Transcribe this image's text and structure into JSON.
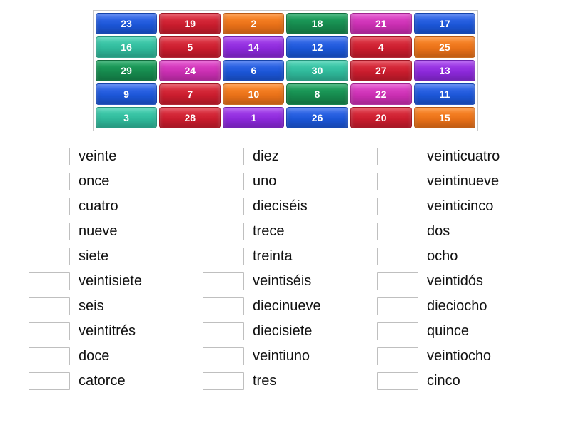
{
  "colors": {
    "blue": {
      "base": "#1b55d6",
      "light": "#3a6ff0"
    },
    "red": {
      "base": "#c91c2d",
      "light": "#e23646"
    },
    "orange": {
      "base": "#e87018",
      "light": "#ff8a2a"
    },
    "green": {
      "base": "#16894d",
      "light": "#1fa862"
    },
    "purple": {
      "base": "#8b28d9",
      "light": "#a944f0"
    },
    "magenta": {
      "base": "#c92eb1",
      "light": "#e348cc"
    },
    "teal": {
      "base": "#2fb89a",
      "light": "#44d2b2"
    }
  },
  "tiles": [
    {
      "n": "23",
      "c": "blue"
    },
    {
      "n": "19",
      "c": "red"
    },
    {
      "n": "2",
      "c": "orange"
    },
    {
      "n": "18",
      "c": "green"
    },
    {
      "n": "21",
      "c": "magenta"
    },
    {
      "n": "17",
      "c": "blue"
    },
    {
      "n": "16",
      "c": "teal"
    },
    {
      "n": "5",
      "c": "red"
    },
    {
      "n": "14",
      "c": "purple"
    },
    {
      "n": "12",
      "c": "blue"
    },
    {
      "n": "4",
      "c": "red"
    },
    {
      "n": "25",
      "c": "orange"
    },
    {
      "n": "29",
      "c": "green"
    },
    {
      "n": "24",
      "c": "magenta"
    },
    {
      "n": "6",
      "c": "blue"
    },
    {
      "n": "30",
      "c": "teal"
    },
    {
      "n": "27",
      "c": "red"
    },
    {
      "n": "13",
      "c": "purple"
    },
    {
      "n": "9",
      "c": "blue"
    },
    {
      "n": "7",
      "c": "red"
    },
    {
      "n": "10",
      "c": "orange"
    },
    {
      "n": "8",
      "c": "green"
    },
    {
      "n": "22",
      "c": "magenta"
    },
    {
      "n": "11",
      "c": "blue"
    },
    {
      "n": "3",
      "c": "teal"
    },
    {
      "n": "28",
      "c": "red"
    },
    {
      "n": "1",
      "c": "purple"
    },
    {
      "n": "26",
      "c": "blue"
    },
    {
      "n": "20",
      "c": "red"
    },
    {
      "n": "15",
      "c": "orange"
    }
  ],
  "columns": [
    [
      "veinte",
      "once",
      "cuatro",
      "nueve",
      "siete",
      "veintisiete",
      "seis",
      "veintitrés",
      "doce",
      "catorce"
    ],
    [
      "diez",
      "uno",
      "dieciséis",
      "trece",
      "treinta",
      "veintiséis",
      "diecinueve",
      "diecisiete",
      "veintiuno",
      "tres"
    ],
    [
      "veinticuatro",
      "veintinueve",
      "veinticinco",
      "dos",
      "ocho",
      "veintidós",
      "dieciocho",
      "quince",
      "veintiocho",
      "cinco"
    ]
  ]
}
